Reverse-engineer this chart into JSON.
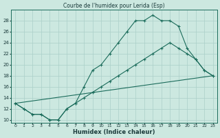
{
  "title": "Courbe de l'humidex pour Lerida (Esp)",
  "xlabel": "Humidex (Indice chaleur)",
  "bg_color": "#cce8e0",
  "line_color": "#1a6b5a",
  "grid_color": "#aacfc8",
  "line1_x": [
    0,
    1,
    2,
    3,
    4,
    5,
    6,
    7,
    8,
    9,
    10,
    11,
    12,
    13,
    14,
    15,
    16,
    17,
    18,
    19,
    20,
    21,
    22,
    23
  ],
  "line1_y": [
    13,
    12,
    11,
    11,
    10,
    10,
    12,
    13,
    16,
    19,
    20,
    22,
    24,
    26,
    28,
    28,
    29,
    28,
    28,
    27,
    23,
    21,
    19,
    18
  ],
  "line2_x": [
    0,
    1,
    2,
    3,
    4,
    5,
    6,
    7,
    8,
    9,
    10,
    11,
    12,
    13,
    14,
    15,
    16,
    17,
    18,
    19,
    20,
    21,
    22,
    23
  ],
  "line2_y": [
    13,
    12,
    11,
    11,
    10,
    10,
    12,
    13,
    14,
    15,
    16,
    17,
    18,
    19,
    20,
    21,
    22,
    23,
    24,
    23,
    22,
    21,
    19,
    18
  ],
  "line3_x": [
    0,
    23
  ],
  "line3_y": [
    13,
    18
  ],
  "xlim": [
    -0.5,
    23.5
  ],
  "ylim": [
    9.5,
    30
  ],
  "yticks": [
    10,
    12,
    14,
    16,
    18,
    20,
    22,
    24,
    26,
    28
  ],
  "xticks": [
    0,
    1,
    2,
    3,
    4,
    5,
    6,
    7,
    8,
    9,
    10,
    11,
    12,
    13,
    14,
    15,
    16,
    17,
    18,
    19,
    20,
    21,
    22,
    23
  ]
}
